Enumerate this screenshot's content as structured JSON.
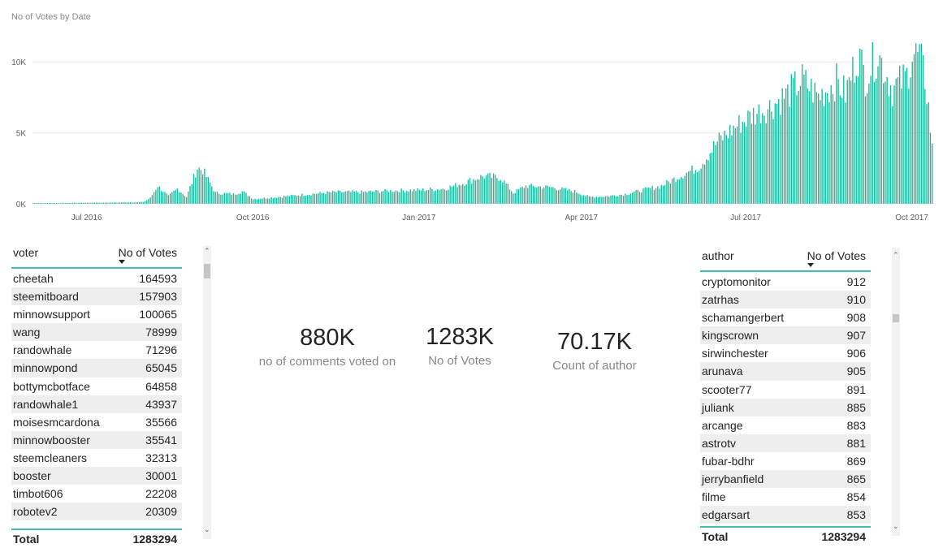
{
  "chart_data": {
    "type": "bar",
    "title": "No of Votes by Date",
    "color": "#1abc9c",
    "y_ticks": [
      "0K",
      "5K",
      "10K"
    ],
    "ylim": [
      0,
      10000
    ],
    "x_ticks": [
      "Jul 2016",
      "Oct 2016",
      "Jan 2017",
      "Apr 2017",
      "Jul 2017",
      "Oct 2017"
    ],
    "x_range": [
      "2016-06-01",
      "2017-10-12"
    ],
    "series": [
      {
        "values": [
          {
            "x": "2016-06-01",
            "y": 60
          },
          {
            "x": "2016-06-15",
            "y": 55
          },
          {
            "x": "2016-07-01",
            "y": 80
          },
          {
            "x": "2016-07-15",
            "y": 90
          },
          {
            "x": "2016-08-01",
            "y": 130
          },
          {
            "x": "2016-08-05",
            "y": 420
          },
          {
            "x": "2016-08-09",
            "y": 1300
          },
          {
            "x": "2016-08-15",
            "y": 550
          },
          {
            "x": "2016-08-20",
            "y": 1100
          },
          {
            "x": "2016-08-25",
            "y": 500
          },
          {
            "x": "2016-08-31",
            "y": 2600
          },
          {
            "x": "2016-09-03",
            "y": 2450
          },
          {
            "x": "2016-09-10",
            "y": 800
          },
          {
            "x": "2016-09-20",
            "y": 700
          },
          {
            "x": "2016-09-25",
            "y": 900
          },
          {
            "x": "2016-10-01",
            "y": 350
          },
          {
            "x": "2016-10-15",
            "y": 500
          },
          {
            "x": "2016-11-01",
            "y": 700
          },
          {
            "x": "2016-11-15",
            "y": 850
          },
          {
            "x": "2016-12-01",
            "y": 850
          },
          {
            "x": "2016-12-15",
            "y": 950
          },
          {
            "x": "2017-01-01",
            "y": 1000
          },
          {
            "x": "2017-01-15",
            "y": 1100
          },
          {
            "x": "2017-01-25",
            "y": 1500
          },
          {
            "x": "2017-02-05",
            "y": 2000
          },
          {
            "x": "2017-02-15",
            "y": 1900
          },
          {
            "x": "2017-02-22",
            "y": 800
          },
          {
            "x": "2017-03-01",
            "y": 1300
          },
          {
            "x": "2017-03-15",
            "y": 1200
          },
          {
            "x": "2017-03-28",
            "y": 900
          },
          {
            "x": "2017-04-05",
            "y": 500
          },
          {
            "x": "2017-04-15",
            "y": 550
          },
          {
            "x": "2017-04-25",
            "y": 700
          },
          {
            "x": "2017-05-05",
            "y": 1000
          },
          {
            "x": "2017-05-15",
            "y": 1300
          },
          {
            "x": "2017-05-25",
            "y": 2000
          },
          {
            "x": "2017-06-05",
            "y": 2700
          },
          {
            "x": "2017-06-15",
            "y": 4500
          },
          {
            "x": "2017-06-25",
            "y": 5600
          },
          {
            "x": "2017-07-05",
            "y": 6500
          },
          {
            "x": "2017-07-15",
            "y": 7100
          },
          {
            "x": "2017-07-25",
            "y": 8100
          },
          {
            "x": "2017-08-01",
            "y": 9000
          },
          {
            "x": "2017-08-10",
            "y": 7800
          },
          {
            "x": "2017-08-20",
            "y": 8900
          },
          {
            "x": "2017-08-25",
            "y": 8000
          },
          {
            "x": "2017-09-01",
            "y": 10900
          },
          {
            "x": "2017-09-05",
            "y": 9200
          },
          {
            "x": "2017-09-12",
            "y": 10900
          },
          {
            "x": "2017-09-20",
            "y": 8300
          },
          {
            "x": "2017-09-28",
            "y": 9300
          },
          {
            "x": "2017-10-01",
            "y": 10900
          },
          {
            "x": "2017-10-05",
            "y": 10700
          },
          {
            "x": "2017-10-08",
            "y": 9100
          },
          {
            "x": "2017-10-10",
            "y": 7000
          },
          {
            "x": "2017-10-12",
            "y": 4000
          }
        ]
      }
    ]
  },
  "voter_table": {
    "col1": "voter",
    "col2": "No of Votes",
    "rows": [
      {
        "name": "cheetah",
        "votes": "164593"
      },
      {
        "name": "steemitboard",
        "votes": "157903"
      },
      {
        "name": "minnowsupport",
        "votes": "100065"
      },
      {
        "name": "wang",
        "votes": "78999"
      },
      {
        "name": "randowhale",
        "votes": "71296"
      },
      {
        "name": "minnowpond",
        "votes": "65045"
      },
      {
        "name": "bottymcbotface",
        "votes": "64858"
      },
      {
        "name": "randowhale1",
        "votes": "43937"
      },
      {
        "name": "moisesmcardona",
        "votes": "35566"
      },
      {
        "name": "minnowbooster",
        "votes": "35541"
      },
      {
        "name": "steemcleaners",
        "votes": "32313"
      },
      {
        "name": "booster",
        "votes": "30001"
      },
      {
        "name": "timbot606",
        "votes": "22208"
      },
      {
        "name": "robotev2",
        "votes": "20309"
      }
    ],
    "total_label": "Total",
    "total_value": "1283294"
  },
  "cards": [
    {
      "value": "880K",
      "label": "no of comments voted on"
    },
    {
      "value": "1283K",
      "label": "No of Votes"
    },
    {
      "value": "70.17K",
      "label": "Count of author"
    }
  ],
  "author_table": {
    "col1": "author",
    "col2": "No of Votes",
    "rows": [
      {
        "name": "cryptomonitor",
        "votes": "912"
      },
      {
        "name": "zatrhas",
        "votes": "910"
      },
      {
        "name": "schamangerbert",
        "votes": "908"
      },
      {
        "name": "kingscrown",
        "votes": "907"
      },
      {
        "name": "sirwinchester",
        "votes": "906"
      },
      {
        "name": "arunava",
        "votes": "905"
      },
      {
        "name": "scooter77",
        "votes": "891"
      },
      {
        "name": "juliank",
        "votes": "885"
      },
      {
        "name": "arcange",
        "votes": "883"
      },
      {
        "name": "astrotv",
        "votes": "881"
      },
      {
        "name": "fubar-bdhr",
        "votes": "869"
      },
      {
        "name": "jerrybanfield",
        "votes": "865"
      },
      {
        "name": "filme",
        "votes": "854"
      },
      {
        "name": "edgarsart",
        "votes": "853"
      }
    ],
    "total_label": "Total",
    "total_value": "1283294"
  }
}
